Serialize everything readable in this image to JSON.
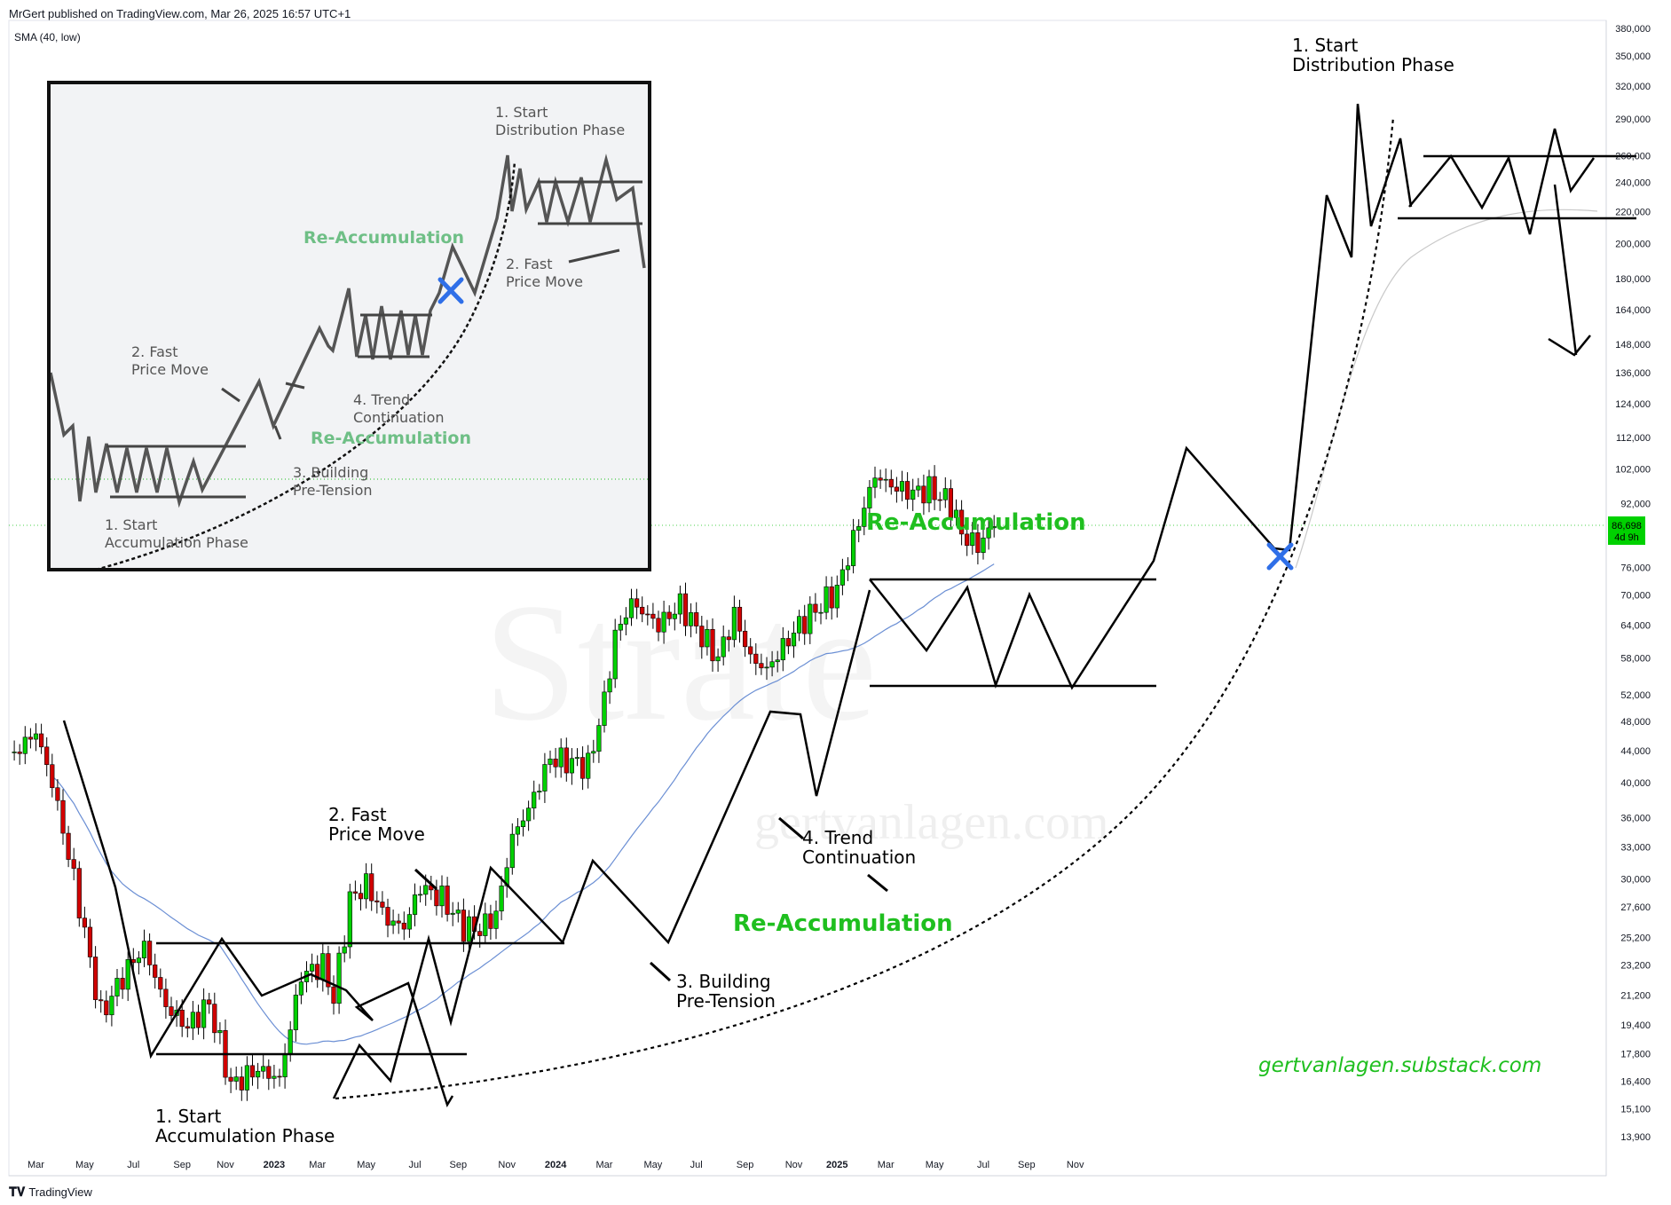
{
  "header": {
    "publisher": "MrGert published on TradingView.com, Mar 26, 2025 16:57 UTC+1",
    "indicator": "SMA (40, low)"
  },
  "footer": {
    "brand": "TradingView",
    "logo_icon": "tradingview-logo-icon"
  },
  "watermark": {
    "brand": "Strate",
    "site": "gertvanlagen.com"
  },
  "price_badge": {
    "price": "86,698",
    "countdown": "4d 9h",
    "color": "#00d100"
  },
  "colors": {
    "up": "#00d100",
    "down": "#d10000",
    "sma": "#6b8fd4",
    "sma_2": "#c9c9c9",
    "label_green": "#1fbf1f",
    "marker": "#2f6fe8"
  },
  "chart_data": {
    "type": "candlestick",
    "scale": "log",
    "x_ticks": [
      "Mar",
      "May",
      "Jul",
      "Sep",
      "Nov",
      "2023",
      "Mar",
      "May",
      "Jul",
      "Sep",
      "Nov",
      "2024",
      "Mar",
      "May",
      "Jul",
      "Sep",
      "Nov",
      "2025",
      "Mar",
      "May",
      "Jul",
      "Sep",
      "Nov"
    ],
    "y_ticks": [
      "380,000",
      "350,000",
      "320,000",
      "290,000",
      "260,000",
      "240,000",
      "220,000",
      "200,000",
      "180,000",
      "164,000",
      "148,000",
      "136,000",
      "124,000",
      "112,000",
      "102,000",
      "92,000",
      "76,000",
      "70,000",
      "64,000",
      "58,000",
      "52,000",
      "48,000",
      "44,000",
      "40,000",
      "36,000",
      "33,000",
      "30,000",
      "27,600",
      "25,200",
      "23,200",
      "21,200",
      "19,400",
      "17,800",
      "16,400",
      "15,100",
      "13,900"
    ],
    "last_price": 86698,
    "annotations": [
      {
        "text_lines": [
          "1. Start",
          "Accumulation Phase"
        ]
      },
      {
        "text_lines": [
          "2. Fast",
          "Price Move"
        ]
      },
      {
        "text_lines": [
          "3. Building",
          "Pre-Tension"
        ]
      },
      {
        "text_lines": [
          "4. Trend",
          "Continuation"
        ]
      },
      {
        "text_lines": [
          "Re-Accumulation"
        ]
      },
      {
        "text_lines": [
          "Re-Accumulation"
        ]
      },
      {
        "text_lines": [
          "1. Start",
          "Distribution Phase"
        ]
      }
    ],
    "promo": "gertvanlagen.substack.com",
    "inset": {
      "annotations": [
        {
          "text_lines": [
            "1. Start",
            "Distribution Phase"
          ]
        },
        {
          "text_lines": [
            "Re-Accumulation"
          ]
        },
        {
          "text_lines": [
            "2. Fast",
            "Price Move"
          ]
        },
        {
          "text_lines": [
            "2. Fast",
            "Price Move"
          ]
        },
        {
          "text_lines": [
            "4. Trend",
            "Continuation"
          ]
        },
        {
          "text_lines": [
            "Re-Accumulation"
          ]
        },
        {
          "text_lines": [
            "3. Building",
            "Pre-Tension"
          ]
        },
        {
          "text_lines": [
            "1. Start",
            "Accumulation Phase"
          ]
        }
      ]
    }
  }
}
